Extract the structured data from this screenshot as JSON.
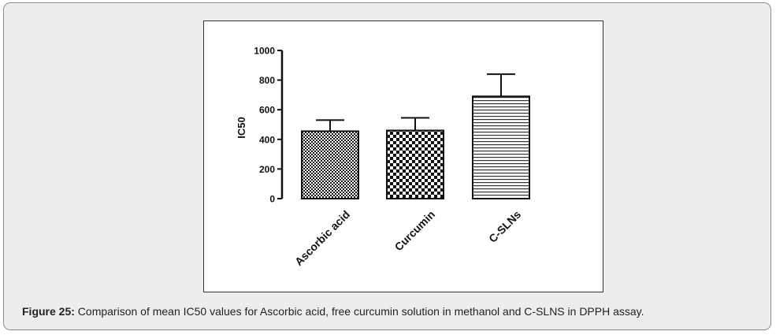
{
  "caption": {
    "label": "Figure 25:",
    "text": " Comparison of mean IC50 values for Ascorbic acid, free curcumin solution in methanol and C-SLNS in DPPH assay."
  },
  "chart_data": {
    "type": "bar",
    "categories": [
      "Ascorbic acid",
      "Curcumin",
      "C-SLNs"
    ],
    "values": [
      455,
      460,
      690
    ],
    "errors": [
      75,
      85,
      150
    ],
    "ylabel": "IC50",
    "xlabel": "",
    "ylim": [
      0,
      1000
    ],
    "yticks": [
      0,
      200,
      400,
      600,
      800,
      1000
    ],
    "bar_patterns": [
      "dense-checker",
      "checker",
      "horizontal-lines"
    ],
    "grid": false,
    "legend": "none"
  }
}
